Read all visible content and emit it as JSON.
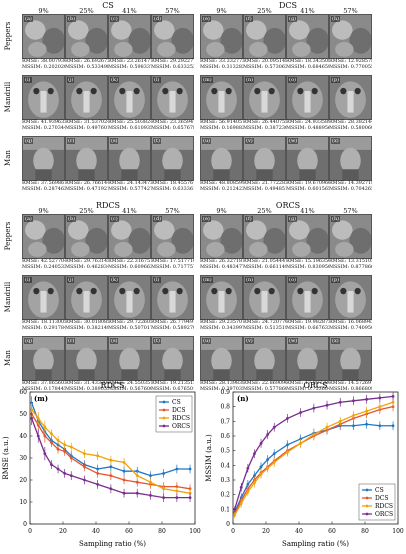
{
  "figure": {
    "top": {
      "methods": [
        "CS",
        "DCS"
      ],
      "percents": [
        "9%",
        "25%",
        "41%",
        "57%"
      ],
      "rows": [
        "Peppers",
        "Mandrill",
        "Man"
      ],
      "labels": [
        [
          "(a)",
          "(b)",
          "(c)",
          "(d)",
          "(e)",
          "(f)",
          "(g)",
          "(h)"
        ],
        [
          "(i)",
          "(j)",
          "(k)",
          "(l)",
          "(m)",
          "(n)",
          "(o)",
          "(p)"
        ],
        [
          "(q)",
          "(r)",
          "(s)",
          "(t)",
          "(u)",
          "(v)",
          "(w)",
          "(x)"
        ]
      ],
      "metrics": [
        [
          [
            "RMSE: 38.007936",
            "MSSIM: 0.202020"
          ],
          [
            "RMSE: 26.692672",
            "MSSIM: 0.533498"
          ],
          [
            "RMSE: 23.261471",
            "MSSIM: 0.598337"
          ],
          [
            "RMSE: 29.292277",
            "MSSIM: 0.633253"
          ],
          [
            "RMSE: 33.332772",
            "MSSIM: 0.313282"
          ],
          [
            "RMSE: 20.095148",
            "MSSIM: 0.573062"
          ],
          [
            "RMSE: 18.343508",
            "MSSIM: 0.684659"
          ],
          [
            "RMSE: 12.928578",
            "MSSIM: 0.770055"
          ]
        ],
        [
          [
            "RMSE: 41.939632",
            "MSSIM: 0.270344"
          ],
          [
            "RMSE: 31.537024",
            "MSSIM: 0.497601"
          ],
          [
            "RMSE: 25.503824",
            "MSSIM: 0.610935"
          ],
          [
            "RMSE: 23.365941",
            "MSSIM: 0.657678"
          ],
          [
            "RMSE: 56.914057",
            "MSSIM: 0.169882"
          ],
          [
            "RMSE: 26.440755",
            "MSSIM: 0.387230"
          ],
          [
            "RMSE: 24.933589",
            "MSSIM: 0.488956"
          ],
          [
            "RMSE: 28.382144",
            "MSSIM: 0.580060"
          ]
        ],
        [
          [
            "RMSE: 37.569861",
            "MSSIM: 0.287462"
          ],
          [
            "RMSE: 26.766144",
            "MSSIM: 0.471921"
          ],
          [
            "RMSE: 24.143473",
            "MSSIM: 0.577427"
          ],
          [
            "RMSE: 18.455767",
            "MSSIM: 0.633361"
          ],
          [
            "RMSE: 48.808599",
            "MSSIM: 0.212423"
          ],
          [
            "RMSE: 21.772282",
            "MSSIM: 0.494851"
          ],
          [
            "RMSE: 19.670966",
            "MSSIM: 0.601565"
          ],
          [
            "RMSE: 14.392718",
            "MSSIM: 0.704265"
          ]
        ]
      ]
    },
    "bottom": {
      "methods": [
        "RDCS",
        "ORCS"
      ],
      "percents": [
        "9%",
        "25%",
        "41%",
        "57%"
      ],
      "rows": [
        "Peppers",
        "Mandrill",
        "Man"
      ],
      "labels": [
        [
          "(a)",
          "(b)",
          "(c)",
          "(d)",
          "(e)",
          "(f)",
          "(g)",
          "(h)"
        ],
        [
          "(i)",
          "(j)",
          "(k)",
          "(l)",
          "(m)",
          "(n)",
          "(o)",
          "(p)"
        ],
        [
          "(q)",
          "(r)",
          "(s)",
          "(t)",
          "(u)",
          "(v)",
          "(w)",
          "(x)"
        ]
      ],
      "metrics": [
        [
          [
            "RMSE: 42.527704",
            "MSSIM: 0.240532"
          ],
          [
            "RMSE: 29.763145",
            "MSSIM: 0.462834"
          ],
          [
            "RMSE: 22.316751",
            "MSSIM: 0.609662"
          ],
          [
            "RMSE: 17.517716",
            "MSSIM: 0.717757"
          ],
          [
            "RMSE: 26.327181",
            "MSSIM: 0.483477"
          ],
          [
            "RMSE: 21.054447",
            "MSSIM: 0.661149"
          ],
          [
            "RMSE: 15.196350",
            "MSSIM: 0.830950"
          ],
          [
            "RMSE: 13.315105",
            "MSSIM: 0.877866"
          ]
        ],
        [
          [
            "RMSE: 18.113005",
            "MSSIM: 0.291784"
          ],
          [
            "RMSE: 30.018085",
            "MSSIM: 0.382149"
          ],
          [
            "RMSE: 29.722605",
            "MSSIM: 0.507017"
          ],
          [
            "RMSE: 26.779491",
            "MSSIM: 0.589270"
          ],
          [
            "RMSE: 29.235707",
            "MSSIM: 0.343997"
          ],
          [
            "RMSE: 24.720770",
            "MSSIM: 0.513519"
          ],
          [
            "RMSE: 19.982872",
            "MSSIM: 0.667633"
          ],
          [
            "RMSE: 16.068943",
            "MSSIM: 0.740950"
          ]
        ],
        [
          [
            "RMSE: 37.865602",
            "MSSIM: 0.178445"
          ],
          [
            "RMSE: 31.433205",
            "MSSIM: 0.389055"
          ],
          [
            "RMSE: 24.550357",
            "MSSIM: 0.567600"
          ],
          [
            "RMSE: 19.213512",
            "MSSIM: 0.676501"
          ],
          [
            "RMSE: 28.139838",
            "MSSIM: 0.397035"
          ],
          [
            "RMSE: 22.869096",
            "MSSIM: 0.577860"
          ],
          [
            "RMSE: 17.087280",
            "MSSIM: 0.753604"
          ],
          [
            "RMSE: 14.572697",
            "MSSIM: 0.866809"
          ]
        ]
      ]
    }
  },
  "chart_data": [
    {
      "type": "line",
      "title": "RDCS",
      "panel_label": "(m)",
      "xlabel": "Sampling ratio (%)",
      "ylabel": "RMSE (a.u.)",
      "xlim": [
        0,
        100
      ],
      "ylim": [
        0,
        60
      ],
      "xticks": [
        0,
        20,
        40,
        60,
        80,
        100
      ],
      "yticks": [
        0,
        10,
        20,
        30,
        40,
        50,
        60
      ],
      "x": [
        1,
        5,
        9,
        13,
        17,
        21,
        25,
        33,
        41,
        49,
        57,
        65,
        73,
        81,
        89,
        97
      ],
      "series": [
        {
          "name": "CS",
          "color": "#1f77c4",
          "values": [
            55,
            47,
            42,
            38,
            36,
            34,
            31,
            27,
            25,
            26,
            24,
            24,
            22,
            23,
            25,
            25
          ]
        },
        {
          "name": "DCS",
          "color": "#e4572e",
          "values": [
            50,
            45,
            40,
            37,
            34,
            33,
            30,
            26,
            23,
            22,
            20,
            19,
            18,
            17,
            17,
            16
          ]
        },
        {
          "name": "RDCS",
          "color": "#f0a20b",
          "values": [
            52,
            48,
            44,
            41,
            38,
            36,
            35,
            32,
            31,
            29,
            28,
            22,
            19,
            16,
            15,
            14
          ]
        },
        {
          "name": "ORCS",
          "color": "#7b2d8e",
          "values": [
            48,
            40,
            32,
            27,
            25,
            23,
            22,
            20,
            18,
            16,
            14,
            14,
            13,
            12,
            12,
            12
          ]
        }
      ],
      "errors": [
        3,
        3,
        3,
        2,
        2,
        2,
        2,
        2,
        2,
        2,
        2,
        2,
        2,
        2,
        2,
        2
      ]
    },
    {
      "type": "line",
      "title": "ORCS",
      "panel_label": "(n)",
      "xlabel": "Sampling ratio (%)",
      "ylabel": "MSSIM (a.u.)",
      "xlim": [
        0,
        100
      ],
      "ylim": [
        0,
        0.9
      ],
      "xticks": [
        0,
        20,
        40,
        60,
        80,
        100
      ],
      "yticks": [
        0,
        0.1,
        0.2,
        0.3,
        0.4,
        0.5,
        0.6,
        0.7,
        0.8,
        0.9
      ],
      "x": [
        1,
        5,
        9,
        13,
        17,
        21,
        25,
        33,
        41,
        49,
        57,
        65,
        73,
        81,
        89,
        97
      ],
      "series": [
        {
          "name": "CS",
          "color": "#1f77c4",
          "values": [
            0.08,
            0.18,
            0.27,
            0.33,
            0.39,
            0.44,
            0.48,
            0.54,
            0.58,
            0.62,
            0.64,
            0.67,
            0.67,
            0.68,
            0.67,
            0.67
          ]
        },
        {
          "name": "DCS",
          "color": "#e4572e",
          "values": [
            0.07,
            0.16,
            0.24,
            0.3,
            0.35,
            0.39,
            0.43,
            0.5,
            0.55,
            0.6,
            0.64,
            0.68,
            0.72,
            0.75,
            0.78,
            0.8
          ]
        },
        {
          "name": "RDCS",
          "color": "#f0a20b",
          "values": [
            0.06,
            0.14,
            0.22,
            0.28,
            0.34,
            0.38,
            0.42,
            0.49,
            0.55,
            0.61,
            0.66,
            0.7,
            0.74,
            0.77,
            0.8,
            0.83
          ]
        },
        {
          "name": "ORCS",
          "color": "#7b2d8e",
          "values": [
            0.1,
            0.25,
            0.38,
            0.48,
            0.55,
            0.61,
            0.66,
            0.72,
            0.76,
            0.79,
            0.81,
            0.83,
            0.84,
            0.85,
            0.86,
            0.87
          ]
        }
      ],
      "errors": [
        0.02,
        0.03,
        0.03,
        0.03,
        0.03,
        0.03,
        0.03,
        0.03,
        0.03,
        0.03,
        0.03,
        0.03,
        0.03,
        0.03,
        0.03,
        0.03
      ]
    }
  ]
}
